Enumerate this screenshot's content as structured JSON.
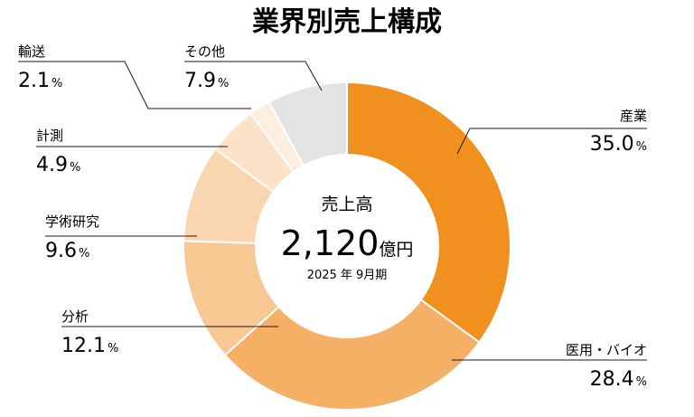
{
  "chart_data": {
    "type": "pie",
    "title": "業界別売上構成",
    "unit": "%",
    "center": {
      "caption": "売上高",
      "value": "2,120",
      "unit": "億円",
      "date": "2025 年 9月期"
    },
    "slices": [
      {
        "label": "産業",
        "value": 35.0,
        "display": "35.0",
        "color": "#f0901e"
      },
      {
        "label": "医用・バイオ",
        "value": 28.4,
        "display": "28.4",
        "color": "#f5b066"
      },
      {
        "label": "分析",
        "value": 12.1,
        "display": "12.1",
        "color": "#f7c893"
      },
      {
        "label": "学術研究",
        "value": 9.6,
        "display": "9.6",
        "color": "#fad6b0"
      },
      {
        "label": "計測",
        "value": 4.9,
        "display": "4.9",
        "color": "#fce2c8"
      },
      {
        "label": "輸送",
        "value": 2.1,
        "display": "2.1",
        "color": "#fdeedf"
      },
      {
        "label": "その他",
        "value": 7.9,
        "display": "7.9",
        "color": "#e3e3e3"
      }
    ]
  }
}
